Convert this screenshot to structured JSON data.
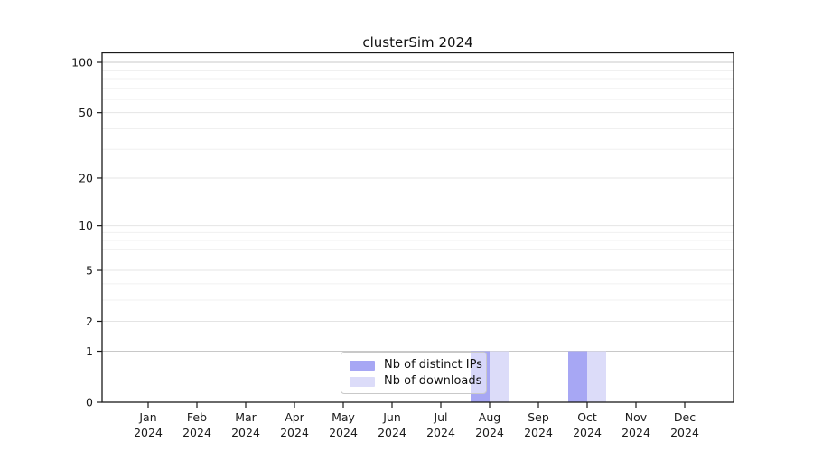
{
  "title": "clusterSim 2024",
  "colors": {
    "bar_distinct_ips": "#a7a7f4",
    "bar_downloads": "#dcdcf9",
    "axis": "#1a1a1a",
    "grid_strong": "#c8c8c8",
    "grid_major": "#e4e4e4",
    "grid_minor": "#f0f0f0",
    "text": "#1a1a1a"
  },
  "chart_data": {
    "type": "bar",
    "title": "clusterSim 2024",
    "categories": [
      "Jan 2024",
      "Feb 2024",
      "Mar 2024",
      "Apr 2024",
      "May 2024",
      "Jun 2024",
      "Jul 2024",
      "Aug 2024",
      "Sep 2024",
      "Oct 2024",
      "Nov 2024",
      "Dec 2024"
    ],
    "x_tick_months": [
      "Jan",
      "Feb",
      "Mar",
      "Apr",
      "May",
      "Jun",
      "Jul",
      "Aug",
      "Sep",
      "Oct",
      "Nov",
      "Dec"
    ],
    "x_tick_year": "2024",
    "series": [
      {
        "name": "Nb of distinct IPs",
        "color": "#a7a7f4",
        "values": [
          0,
          0,
          0,
          0,
          0,
          0,
          0,
          1,
          0,
          1,
          0,
          0
        ]
      },
      {
        "name": "Nb of downloads",
        "color": "#dcdcf9",
        "values": [
          0,
          0,
          0,
          0,
          0,
          0,
          0,
          1,
          0,
          1,
          0,
          0
        ]
      }
    ],
    "xlabel": "",
    "ylabel": "",
    "y_scale": "log1p",
    "y_ticks": [
      0,
      1,
      2,
      5,
      10,
      20,
      50,
      100
    ],
    "y_tick_labels": [
      "0",
      "1",
      "2",
      "5",
      "10",
      "20",
      "50",
      "100"
    ],
    "y_minor_gridlines": [
      3,
      4,
      6,
      7,
      8,
      9,
      30,
      40,
      60,
      70,
      80,
      90
    ],
    "ylim": [
      0,
      112
    ],
    "grid": "horizontal",
    "legend_position": "bottom-center"
  }
}
